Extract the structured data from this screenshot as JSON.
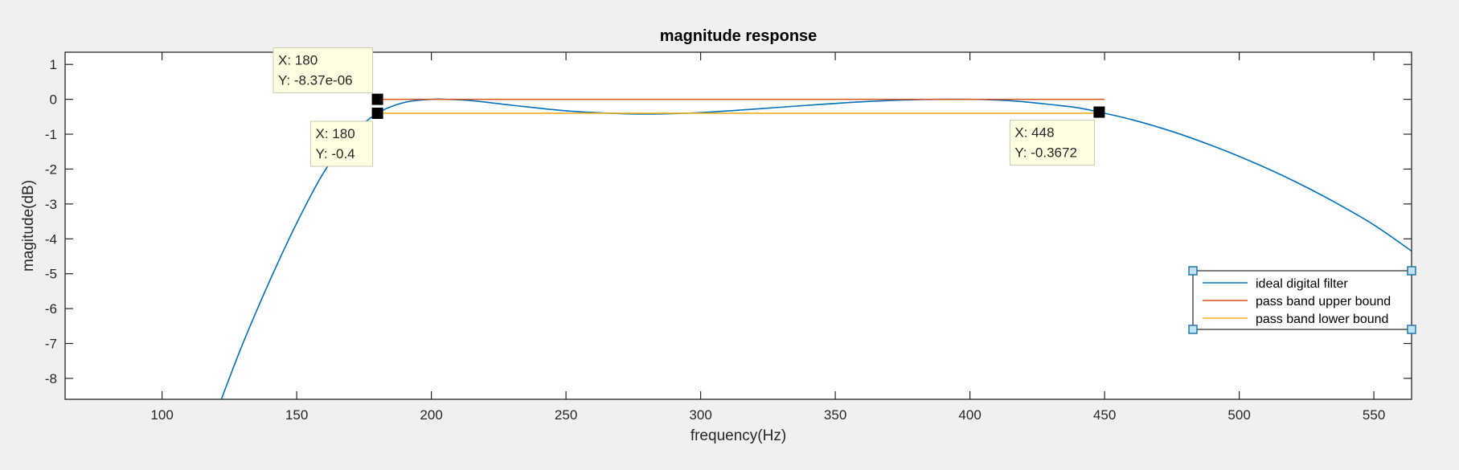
{
  "figure": {
    "background_color": "#f0f0f0",
    "axes_color": "#ffffff",
    "axis_line_color": "#262626"
  },
  "chart_data": {
    "type": "line",
    "title": "magnitude response",
    "xlabel": "frequency(Hz)",
    "ylabel": "magitude(dB)",
    "xlim": [
      64,
      564
    ],
    "ylim": [
      -8.6,
      1.35
    ],
    "xticks": [
      100,
      150,
      200,
      250,
      300,
      350,
      400,
      450,
      500,
      550
    ],
    "xtick_labels": [
      "100",
      "150",
      "200",
      "250",
      "300",
      "350",
      "400",
      "450",
      "500",
      "550"
    ],
    "yticks": [
      1,
      0,
      -1,
      -2,
      -3,
      -4,
      -5,
      -6,
      -7,
      -8
    ],
    "ytick_labels": [
      "1",
      "0",
      "-1",
      "-2",
      "-3",
      "-4",
      "-5",
      "-6",
      "-7",
      "-8"
    ],
    "grid": false,
    "legend_position": "lower-right",
    "series": [
      {
        "name": "ideal digital filter",
        "color": "#0072bd",
        "x": [
          122,
          130,
          140,
          150,
          160,
          170,
          180,
          190,
          200,
          205,
          215,
          230,
          250,
          270,
          285,
          300,
          320,
          340,
          360,
          380,
          400,
          410,
          420,
          430,
          440,
          448,
          460,
          475,
          490,
          505,
          520,
          535,
          550,
          564
        ],
        "y": [
          -8.6,
          -7.0,
          -5.2,
          -3.55,
          -2.1,
          -1.05,
          -0.4,
          -0.09,
          0.0,
          0.0,
          -0.04,
          -0.17,
          -0.33,
          -0.41,
          -0.42,
          -0.38,
          -0.28,
          -0.17,
          -0.07,
          -0.01,
          0.0,
          -0.02,
          -0.07,
          -0.15,
          -0.24,
          -0.3672,
          -0.58,
          -0.92,
          -1.33,
          -1.8,
          -2.33,
          -2.93,
          -3.6,
          -4.35
        ]
      },
      {
        "name": "pass band upper bound",
        "color": "#d95319",
        "x": [
          180,
          450
        ],
        "y": [
          0,
          0
        ]
      },
      {
        "name": "pass band lower bound",
        "color": "#edb120",
        "x": [
          180,
          450
        ],
        "y": [
          -0.4,
          -0.4
        ]
      }
    ],
    "datatips": [
      {
        "x": 180,
        "y": -8.37e-06,
        "x_text": "X: 180",
        "y_text": "Y: -8.37e-06",
        "placement": "above-left"
      },
      {
        "x": 180,
        "y": -0.4,
        "x_text": "X: 180",
        "y_text": "Y: -0.4",
        "placement": "below-left"
      },
      {
        "x": 448,
        "y": -0.3672,
        "x_text": "X: 448",
        "y_text": "Y: -0.3672",
        "placement": "below-left"
      }
    ]
  }
}
